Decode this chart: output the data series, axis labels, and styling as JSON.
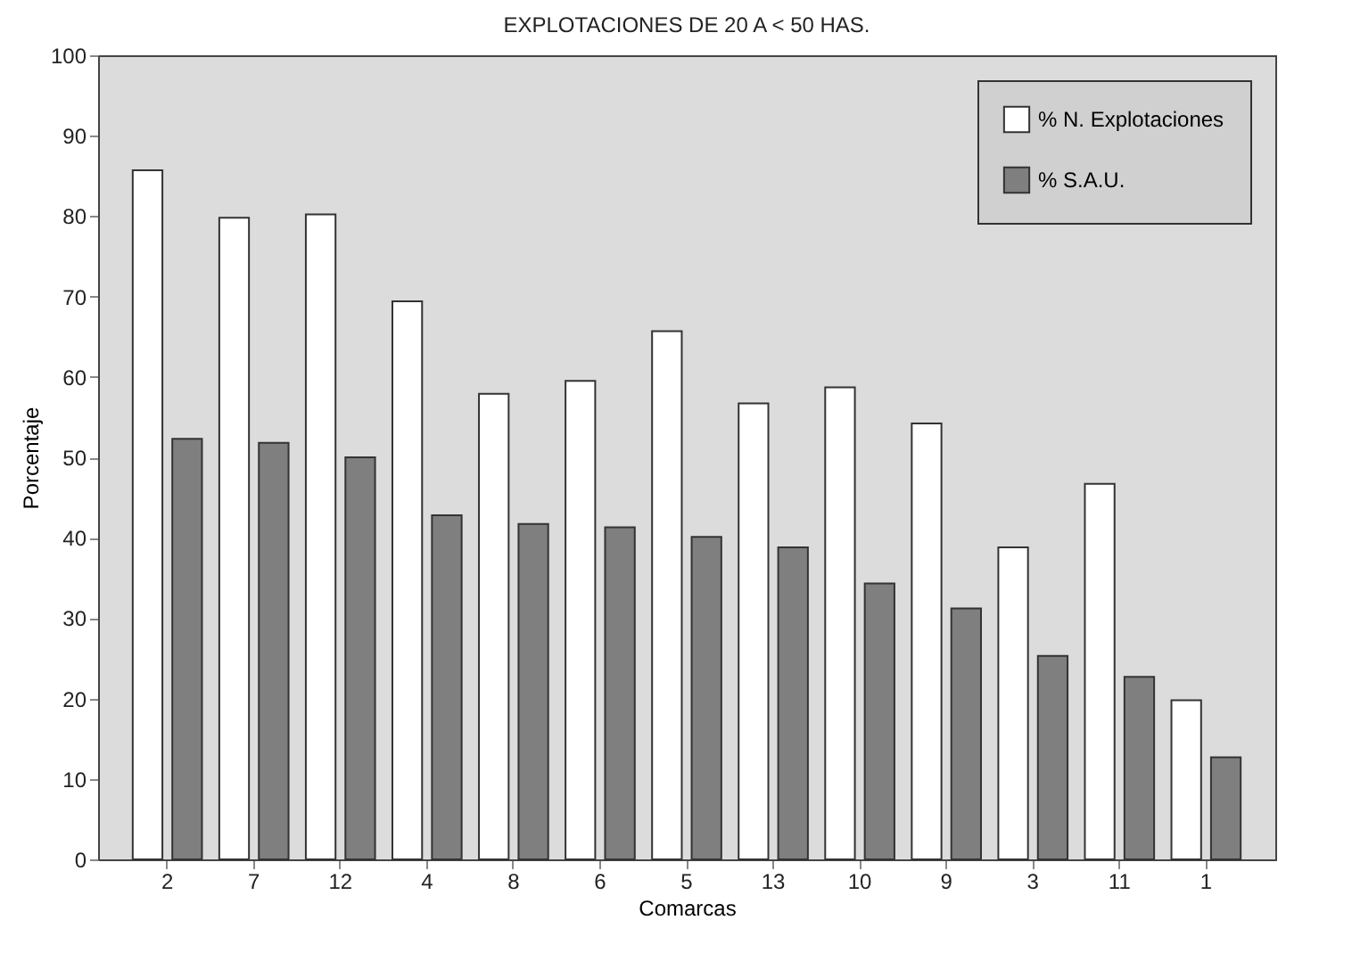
{
  "chart_data": {
    "type": "bar",
    "title": "EXPLOTACIONES DE 20 A < 50 HAS.",
    "xlabel": "Comarcas",
    "ylabel": "Porcentaje",
    "categories": [
      "2",
      "7",
      "12",
      "4",
      "8",
      "6",
      "5",
      "13",
      "10",
      "9",
      "3",
      "11",
      "1"
    ],
    "series": [
      {
        "name": "% N. Explotaciones",
        "color": "#ffffff",
        "values": [
          85.7,
          79.8,
          80.2,
          69.4,
          57.9,
          59.5,
          65.7,
          56.7,
          58.7,
          54.2,
          38.8,
          46.7,
          19.8
        ]
      },
      {
        "name": "% S.A.U.",
        "color": "#7f7f7f",
        "values": [
          52.3,
          51.8,
          50.0,
          42.8,
          41.7,
          41.3,
          40.1,
          38.8,
          34.3,
          31.2,
          25.3,
          22.7,
          12.7
        ]
      }
    ],
    "ylim": [
      0,
      100
    ],
    "yticks": [
      0,
      10,
      20,
      30,
      40,
      50,
      60,
      70,
      80,
      90,
      100
    ],
    "legend": "top right"
  }
}
